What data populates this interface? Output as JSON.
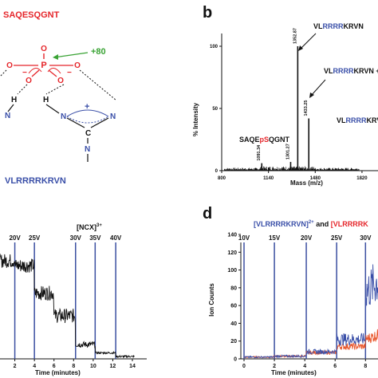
{
  "colors": {
    "red": "#e5252a",
    "blue": "#3a4fa8",
    "green": "#3aa335",
    "black": "#111111",
    "vline": "#3b4fa0",
    "orange": "#e8552a"
  },
  "panel_a": {
    "peptide_top": "SAQESQGNT",
    "peptide_bottom": "VLRRRRKRVN",
    "shift": "+80",
    "atoms": {
      "o": "O",
      "p": "P",
      "h": "H",
      "n": "N",
      "c": "C",
      "plus": "+",
      "minus": "−"
    }
  },
  "panel_b": {
    "letter": "b",
    "ylabel": "% Intensity",
    "xlabel": "Mass (m/z)",
    "peak_labels": {
      "p1": "1352.87",
      "p2": "1433.25",
      "p3": "1301.27",
      "p4": "1091.34"
    },
    "annotations": {
      "vl1_pre": "VL",
      "vl1_rep": "RRRR",
      "vl1_post": "KRVN",
      "vl2_pre": "VL",
      "vl2_rep": "RRRR",
      "vl2_post": "KRVN +",
      "vl3_pre": "VL",
      "vl3_rep": "RRRR",
      "vl3_post": "KRVN",
      "sa_pre": "SAQE",
      "sa_mid": "pS",
      "sa_post": "QGNT"
    }
  },
  "panel_c": {
    "title_pre": "[NCX]",
    "title_sup": "3+",
    "xlabel": "Time (minutes)"
  },
  "panel_d": {
    "letter": "d",
    "title_a_pre": "[VLRRRRKRVN]",
    "title_a_sup": "2+",
    "title_and": " and ",
    "title_b_pre": "[VLRRRRK",
    "ylabel": "Ion Counts",
    "xlabel": "Time (minutes)"
  },
  "chart_data": [
    {
      "type": "line",
      "panel": "b",
      "xlabel": "Mass (m/z)",
      "ylabel": "% Intensity",
      "xlim": [
        800,
        1800
      ],
      "ylim": [
        0,
        100
      ],
      "x_ticks": [
        800,
        1140,
        1480,
        1820
      ],
      "y_ticks": [
        0,
        50,
        100
      ],
      "peaks": [
        {
          "mz": 1091.34,
          "intensity": 6
        },
        {
          "mz": 1301.27,
          "intensity": 7
        },
        {
          "mz": 1352.87,
          "intensity": 100
        },
        {
          "mz": 1433.25,
          "intensity": 42
        }
      ]
    },
    {
      "type": "line",
      "panel": "c",
      "title": "[NCX]3+",
      "xlabel": "Time (minutes)",
      "xlim": [
        0,
        15
      ],
      "x_ticks": [
        0,
        2,
        4,
        6,
        8,
        10,
        12,
        14
      ],
      "voltage_markers": [
        {
          "label": "20V",
          "time": 2.0
        },
        {
          "label": "25V",
          "time": 4.0
        },
        {
          "label": "30V",
          "time": 8.2
        },
        {
          "label": "35V",
          "time": 10.2
        },
        {
          "label": "40V",
          "time": 12.3
        }
      ],
      "series": [
        {
          "values": [
            [
              0,
              0.82
            ],
            [
              2,
              0.78
            ],
            [
              4,
              0.55
            ],
            [
              6,
              0.36
            ],
            [
              8.2,
              0.12
            ],
            [
              10.2,
              0.05
            ],
            [
              12.3,
              0.02
            ],
            [
              15,
              0.02
            ]
          ]
        }
      ]
    },
    {
      "type": "line",
      "panel": "d",
      "xlabel": "Time (minutes)",
      "ylabel": "Ion Counts",
      "xlim": [
        0,
        9
      ],
      "ylim": [
        0,
        140
      ],
      "x_ticks": [
        0,
        2,
        4,
        6,
        8
      ],
      "y_ticks": [
        0,
        20,
        40,
        60,
        80,
        100,
        120,
        140
      ],
      "voltage_markers": [
        {
          "label": "10V",
          "time": 0
        },
        {
          "label": "15V",
          "time": 2
        },
        {
          "label": "20V",
          "time": 4.1
        },
        {
          "label": "25V",
          "time": 6.1
        },
        {
          "label": "30V",
          "time": 8.0
        }
      ],
      "series": [
        {
          "name": "[VLRRRRKRVN]2+",
          "color": "#3a4fa8",
          "values": [
            [
              0,
              2
            ],
            [
              2,
              3
            ],
            [
              4.1,
              8
            ],
            [
              6.1,
              22
            ],
            [
              8,
              75
            ],
            [
              9,
              90
            ]
          ]
        },
        {
          "name": "[VLRRRRK",
          "color": "#e8552a",
          "values": [
            [
              0,
              2
            ],
            [
              2,
              3
            ],
            [
              4.1,
              7
            ],
            [
              6.1,
              14
            ],
            [
              8,
              22
            ],
            [
              9,
              28
            ]
          ]
        }
      ]
    }
  ]
}
